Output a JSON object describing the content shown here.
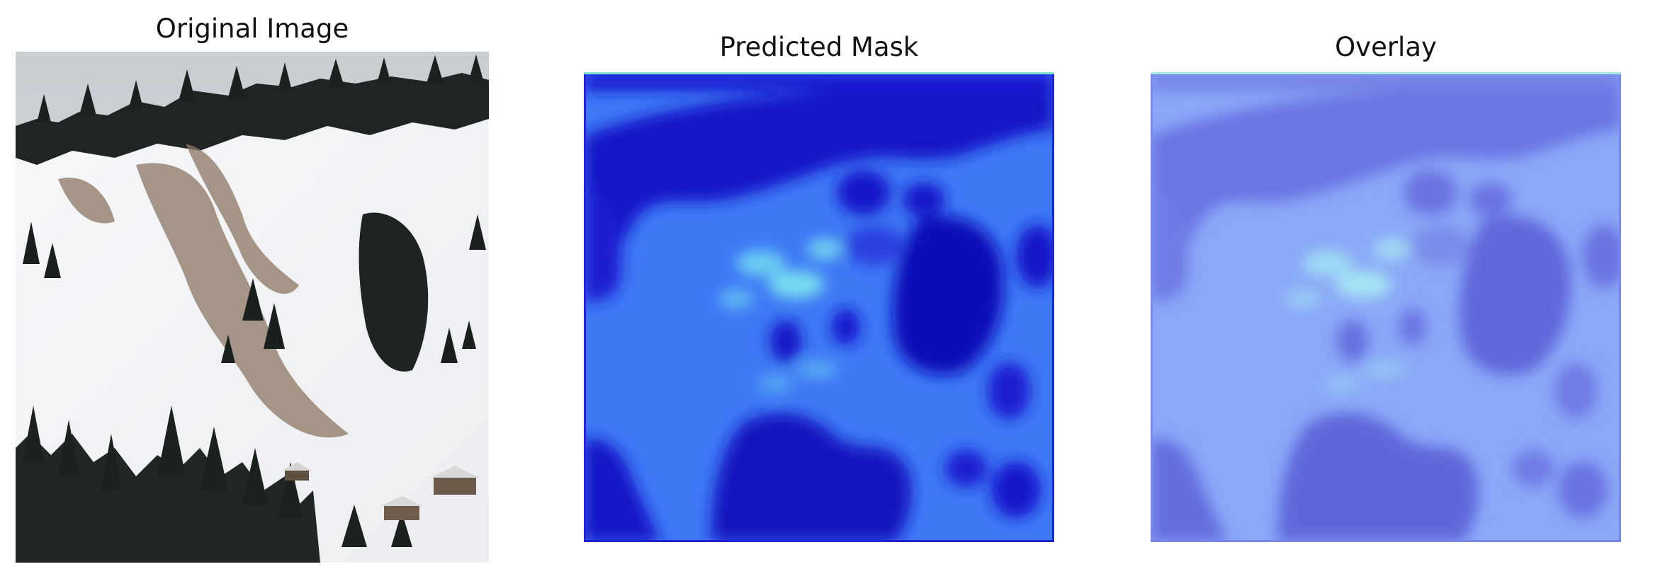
{
  "figure": {
    "panels": [
      {
        "title": "Original Image",
        "content": "photo of snowy mountain slope with avalanche debris and pine trees"
      },
      {
        "title": "Predicted Mask",
        "colormap": "jet",
        "dominant_colors": [
          "#1414d0",
          "#3d78f5",
          "#7fe8f0"
        ]
      },
      {
        "title": "Overlay",
        "blend": "photo + predicted mask"
      }
    ]
  }
}
